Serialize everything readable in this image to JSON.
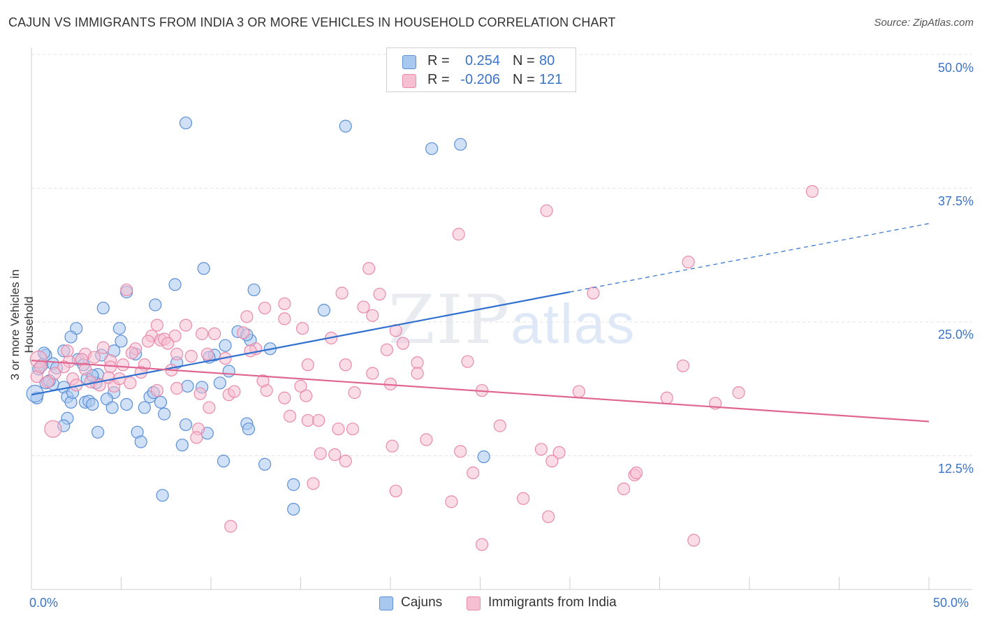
{
  "header": {
    "title": "CAJUN VS IMMIGRANTS FROM INDIA 3 OR MORE VEHICLES IN HOUSEHOLD CORRELATION CHART",
    "source": "Source: ZipAtlas.com"
  },
  "legend_top": {
    "rows": [
      {
        "r_label": "R =",
        "r_value": "0.254",
        "n_label": "N =",
        "n_value": "80"
      },
      {
        "r_label": "R =",
        "r_value": "-0.206",
        "n_label": "N =",
        "n_value": "121"
      }
    ]
  },
  "legend_bottom": {
    "items": [
      {
        "label": "Cajuns"
      },
      {
        "label": "Immigrants from India"
      }
    ]
  },
  "watermark": {
    "zip": "ZIP",
    "atlas": "atlas"
  },
  "axes": {
    "ylabel": "3 or more Vehicles in Household",
    "x_min_label": "0.0%",
    "x_max_label": "50.0%",
    "y_ticks": [
      "50.0%",
      "37.5%",
      "25.0%",
      "12.5%"
    ]
  },
  "colors": {
    "blue_fill": "#a9c8f0",
    "blue_stroke": "#5b8fd6",
    "blue_line": "#2f6fcf",
    "pink_fill": "#f6bfd2",
    "pink_stroke": "#e98aab",
    "pink_line": "#e06692",
    "grid": "#e2e2e2",
    "tick_text": "#3b73c8"
  },
  "chart_data": {
    "type": "scatter",
    "title": "CAJUN VS IMMIGRANTS FROM INDIA 3 OR MORE VEHICLES IN HOUSEHOLD CORRELATION CHART",
    "xlabel": "",
    "ylabel": "3 or more Vehicles in Household",
    "xlim": [
      0,
      50
    ],
    "ylim": [
      0,
      50
    ],
    "y_ticks": [
      12.5,
      25.0,
      37.5,
      50.0
    ],
    "grid": true,
    "series": [
      {
        "name": "Cajuns",
        "r": 0.254,
        "n": 80,
        "trend": {
          "x0": 0,
          "y0": 18.2,
          "x1": 30,
          "y1": 27.8,
          "dashed_to_x": 50,
          "dashed_to_y": 34.2
        },
        "points": [
          [
            8.6,
            43.6
          ],
          [
            17.5,
            43.3
          ],
          [
            22.3,
            41.2
          ],
          [
            23.9,
            41.6
          ],
          [
            9.6,
            30.0
          ],
          [
            12.4,
            28.0
          ],
          [
            5.3,
            27.8
          ],
          [
            8.0,
            28.5
          ],
          [
            6.9,
            26.6
          ],
          [
            4.0,
            26.3
          ],
          [
            16.3,
            26.1
          ],
          [
            2.5,
            24.4
          ],
          [
            4.9,
            24.4
          ],
          [
            11.5,
            24.1
          ],
          [
            12.2,
            23.3
          ],
          [
            2.2,
            23.6
          ],
          [
            1.8,
            22.3
          ],
          [
            5.0,
            23.2
          ],
          [
            10.8,
            22.8
          ],
          [
            4.6,
            22.3
          ],
          [
            0.8,
            21.9
          ],
          [
            3.9,
            21.9
          ],
          [
            10.2,
            21.9
          ],
          [
            2.6,
            21.5
          ],
          [
            0.6,
            21.0
          ],
          [
            1.2,
            21.1
          ],
          [
            8.1,
            21.2
          ],
          [
            0.4,
            20.6
          ],
          [
            11.0,
            20.4
          ],
          [
            3.7,
            20.1
          ],
          [
            0.8,
            19.3
          ],
          [
            1.2,
            19.2
          ],
          [
            3.6,
            19.3
          ],
          [
            8.7,
            19.0
          ],
          [
            9.5,
            18.9
          ],
          [
            10.5,
            19.3
          ],
          [
            1.8,
            18.9
          ],
          [
            2.0,
            18.0
          ],
          [
            4.6,
            18.4
          ],
          [
            2.2,
            17.5
          ],
          [
            3.0,
            17.5
          ],
          [
            3.2,
            17.6
          ],
          [
            4.2,
            17.8
          ],
          [
            6.6,
            18.0
          ],
          [
            7.2,
            17.5
          ],
          [
            3.4,
            17.3
          ],
          [
            0.3,
            17.9
          ],
          [
            5.3,
            17.3
          ],
          [
            4.5,
            17.0
          ],
          [
            6.3,
            17.0
          ],
          [
            7.4,
            16.4
          ],
          [
            2.0,
            16.0
          ],
          [
            1.8,
            15.3
          ],
          [
            8.6,
            15.4
          ],
          [
            12.0,
            15.5
          ],
          [
            12.1,
            15.0
          ],
          [
            3.7,
            14.7
          ],
          [
            5.9,
            14.7
          ],
          [
            9.8,
            14.6
          ],
          [
            6.1,
            13.8
          ],
          [
            8.4,
            13.5
          ],
          [
            10.7,
            12.0
          ],
          [
            13.0,
            11.7
          ],
          [
            25.2,
            12.4
          ],
          [
            14.6,
            9.8
          ],
          [
            7.3,
            8.8
          ],
          [
            14.6,
            7.5
          ],
          [
            0.2,
            18.3
          ],
          [
            1.0,
            19.5
          ],
          [
            3.1,
            19.7
          ],
          [
            6.8,
            18.4
          ],
          [
            9.9,
            21.7
          ],
          [
            1.4,
            20.7
          ],
          [
            2.9,
            21.0
          ],
          [
            0.7,
            22.1
          ],
          [
            5.8,
            22.0
          ],
          [
            12.0,
            23.8
          ],
          [
            13.3,
            22.5
          ],
          [
            3.4,
            20.0
          ],
          [
            2.3,
            18.4
          ]
        ]
      },
      {
        "name": "Immigrants from India",
        "r": -0.206,
        "n": 121,
        "trend": {
          "x0": 0,
          "y0": 21.4,
          "x1": 50,
          "y1": 15.7
        },
        "points": [
          [
            43.5,
            37.2
          ],
          [
            28.7,
            35.4
          ],
          [
            23.8,
            33.2
          ],
          [
            36.6,
            30.6
          ],
          [
            18.8,
            30.0
          ],
          [
            31.3,
            27.7
          ],
          [
            5.3,
            28.0
          ],
          [
            17.3,
            27.7
          ],
          [
            19.4,
            27.6
          ],
          [
            14.1,
            26.7
          ],
          [
            13.0,
            26.3
          ],
          [
            18.5,
            26.4
          ],
          [
            12.0,
            25.5
          ],
          [
            19.0,
            25.6
          ],
          [
            7.0,
            24.7
          ],
          [
            8.6,
            24.7
          ],
          [
            14.1,
            25.3
          ],
          [
            15.1,
            24.4
          ],
          [
            20.3,
            24.2
          ],
          [
            9.5,
            23.9
          ],
          [
            10.2,
            23.9
          ],
          [
            11.8,
            24.0
          ],
          [
            6.7,
            23.7
          ],
          [
            8.0,
            23.7
          ],
          [
            16.7,
            23.5
          ],
          [
            7.2,
            23.3
          ],
          [
            7.4,
            23.4
          ],
          [
            6.5,
            23.2
          ],
          [
            7.6,
            23.0
          ],
          [
            20.7,
            23.0
          ],
          [
            12.5,
            22.5
          ],
          [
            5.8,
            22.5
          ],
          [
            4.0,
            22.6
          ],
          [
            19.8,
            22.4
          ],
          [
            3.0,
            22.0
          ],
          [
            8.1,
            22.0
          ],
          [
            9.8,
            22.0
          ],
          [
            5.6,
            22.1
          ],
          [
            12.2,
            22.3
          ],
          [
            10.8,
            21.6
          ],
          [
            0.4,
            21.5
          ],
          [
            2.1,
            21.3
          ],
          [
            2.8,
            21.5
          ],
          [
            4.4,
            21.4
          ],
          [
            6.3,
            21.0
          ],
          [
            15.4,
            21.0
          ],
          [
            17.5,
            21.0
          ],
          [
            24.3,
            21.3
          ],
          [
            21.5,
            21.2
          ],
          [
            36.3,
            20.9
          ],
          [
            1.8,
            20.8
          ],
          [
            3.0,
            20.6
          ],
          [
            4.4,
            20.8
          ],
          [
            7.8,
            20.5
          ],
          [
            19.0,
            20.2
          ],
          [
            21.5,
            20.2
          ],
          [
            1.3,
            20.2
          ],
          [
            2.3,
            19.7
          ],
          [
            4.3,
            19.8
          ],
          [
            0.9,
            19.4
          ],
          [
            3.3,
            19.4
          ],
          [
            5.5,
            19.3
          ],
          [
            3.8,
            19.1
          ],
          [
            4.6,
            19.0
          ],
          [
            20.0,
            19.2
          ],
          [
            0.3,
            19.9
          ],
          [
            2.5,
            19.1
          ],
          [
            7.0,
            18.6
          ],
          [
            8.1,
            18.8
          ],
          [
            13.1,
            18.6
          ],
          [
            18.0,
            18.4
          ],
          [
            25.1,
            18.6
          ],
          [
            30.5,
            18.5
          ],
          [
            39.4,
            18.4
          ],
          [
            9.4,
            18.3
          ],
          [
            11.0,
            18.2
          ],
          [
            15.3,
            18.1
          ],
          [
            14.1,
            17.9
          ],
          [
            35.4,
            17.9
          ],
          [
            38.1,
            17.4
          ],
          [
            9.9,
            17.0
          ],
          [
            14.4,
            16.2
          ],
          [
            15.4,
            15.8
          ],
          [
            16.0,
            15.8
          ],
          [
            26.1,
            15.3
          ],
          [
            17.9,
            15.0
          ],
          [
            17.1,
            15.0
          ],
          [
            9.3,
            15.0
          ],
          [
            1.2,
            15.0
          ],
          [
            9.2,
            14.2
          ],
          [
            22.0,
            14.0
          ],
          [
            20.1,
            13.4
          ],
          [
            28.4,
            13.1
          ],
          [
            23.9,
            12.9
          ],
          [
            16.1,
            12.7
          ],
          [
            29.4,
            12.8
          ],
          [
            16.9,
            12.6
          ],
          [
            17.5,
            12.0
          ],
          [
            29.0,
            12.0
          ],
          [
            24.6,
            10.9
          ],
          [
            33.6,
            10.7
          ],
          [
            33.7,
            10.9
          ],
          [
            15.7,
            9.9
          ],
          [
            33.0,
            9.4
          ],
          [
            20.3,
            9.2
          ],
          [
            23.4,
            8.2
          ],
          [
            27.4,
            8.5
          ],
          [
            28.8,
            6.8
          ],
          [
            11.1,
            5.9
          ],
          [
            36.9,
            4.6
          ],
          [
            25.1,
            4.2
          ],
          [
            12.9,
            19.5
          ],
          [
            6.1,
            20.3
          ],
          [
            11.3,
            18.5
          ],
          [
            8.9,
            21.8
          ],
          [
            5.1,
            21.0
          ],
          [
            15.0,
            19.0
          ],
          [
            3.5,
            21.7
          ],
          [
            0.5,
            20.8
          ],
          [
            2.0,
            22.3
          ],
          [
            4.9,
            19.7
          ]
        ]
      }
    ]
  }
}
